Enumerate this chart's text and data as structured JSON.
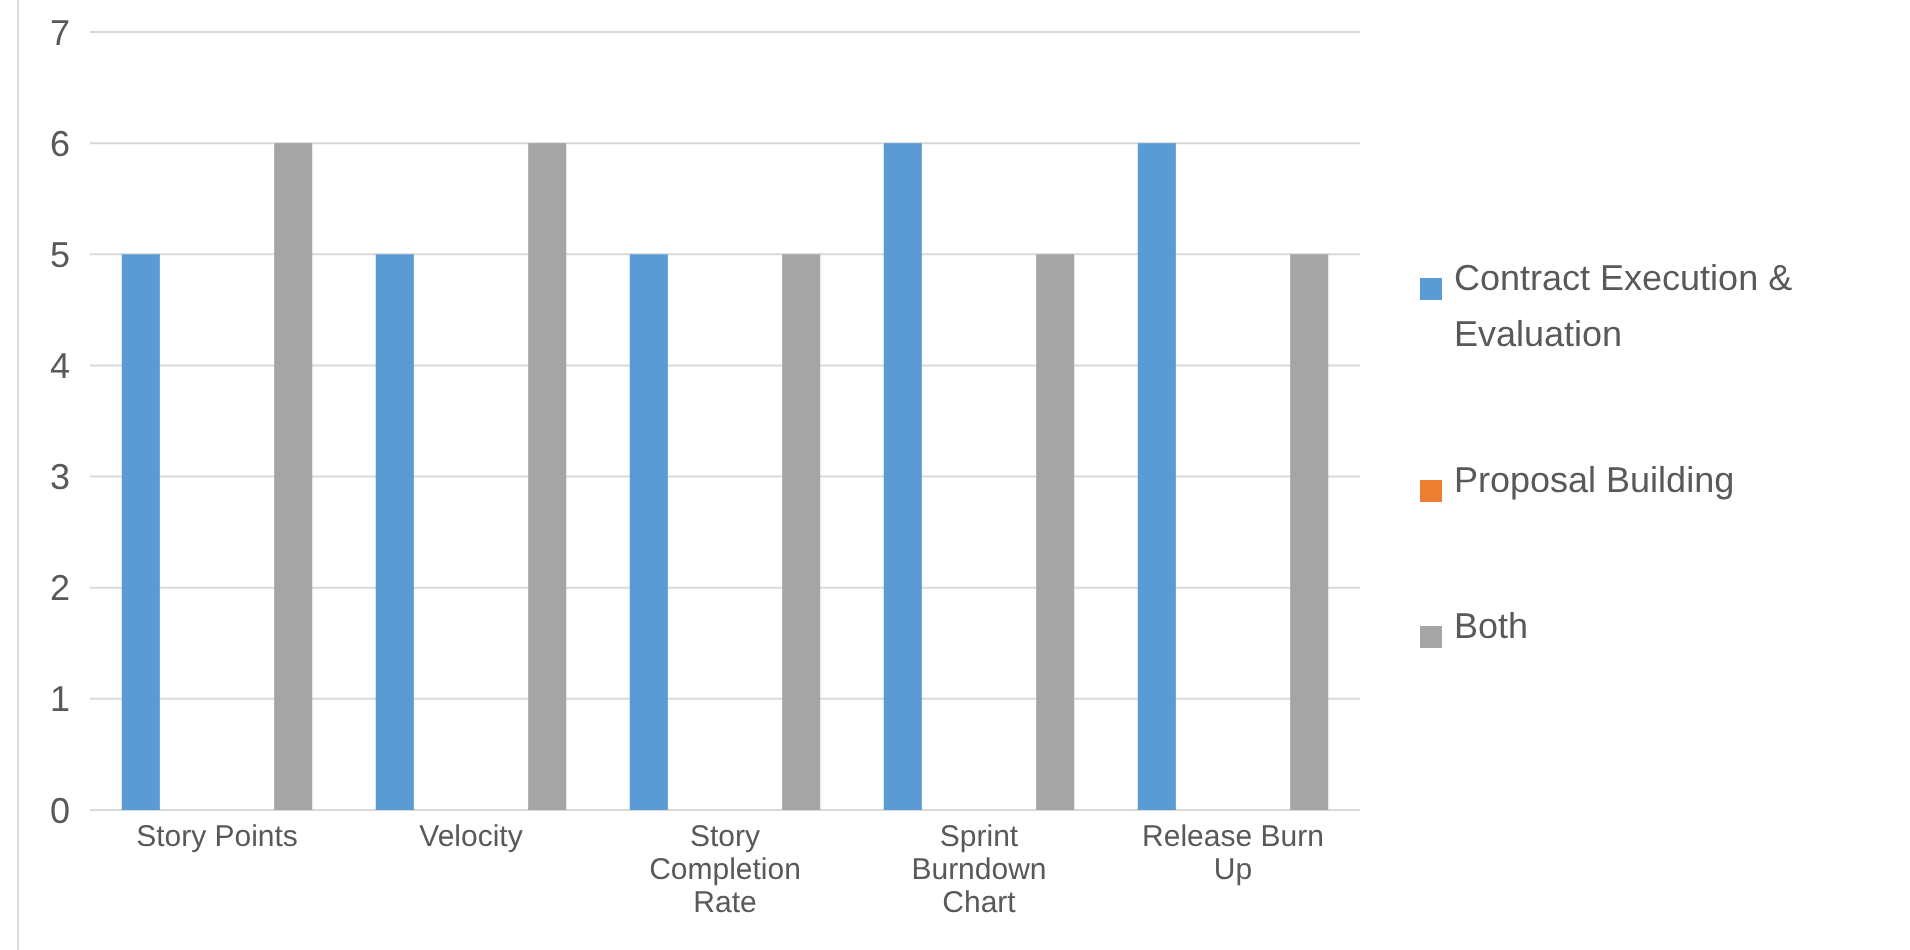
{
  "chart_data": {
    "type": "bar",
    "categories": [
      "Story Points",
      "Velocity",
      "Story Completion Rate",
      "Sprint Burndown Chart",
      "Release Burn Up"
    ],
    "series": [
      {
        "name": "Contract Execution & Evaluation",
        "color": "#5b9bd5",
        "values": [
          5,
          5,
          5,
          6,
          6
        ]
      },
      {
        "name": "Proposal Building",
        "color": "#ed7d31",
        "values": [
          0,
          0,
          0,
          0,
          0
        ]
      },
      {
        "name": "Both",
        "color": "#a5a5a5",
        "values": [
          6,
          6,
          5,
          5,
          5
        ]
      }
    ],
    "ylim": [
      0,
      7
    ],
    "yticks": [
      0,
      1,
      2,
      3,
      4,
      5,
      6,
      7
    ],
    "grid": "y",
    "legend": "right"
  }
}
